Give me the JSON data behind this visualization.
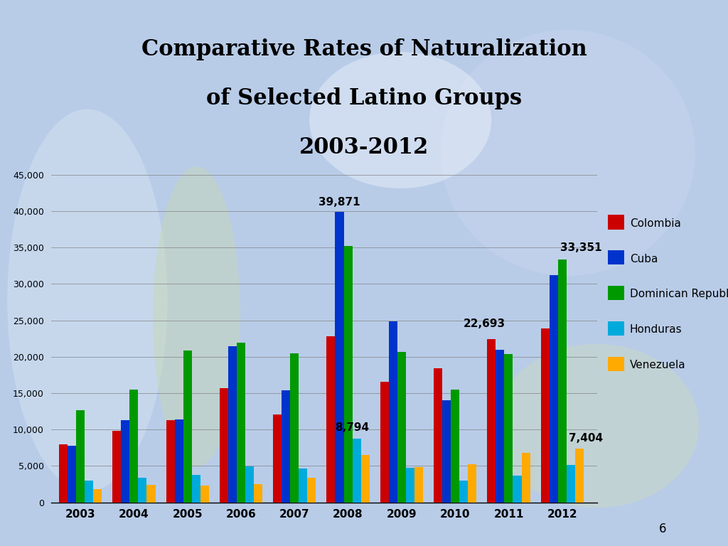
{
  "title_line1": "Comparative Rates of Naturalization",
  "title_line2": "of Selected Latino Groups",
  "title_line3": "2003-2012",
  "years": [
    2003,
    2004,
    2005,
    2006,
    2007,
    2008,
    2009,
    2010,
    2011,
    2012
  ],
  "series": {
    "Colombia": {
      "color": "#CC0000",
      "values": [
        8000,
        9800,
        11300,
        15700,
        12100,
        22800,
        16600,
        18400,
        22400,
        23900
      ]
    },
    "Cuba": {
      "color": "#0033CC",
      "values": [
        7800,
        11300,
        11400,
        21400,
        15400,
        39871,
        24900,
        14000,
        21000,
        31200
      ]
    },
    "Dominican Republic": {
      "color": "#009900",
      "values": [
        12700,
        15500,
        20900,
        21900,
        20500,
        35200,
        20700,
        15500,
        20400,
        33351
      ]
    },
    "Honduras": {
      "color": "#00AADD",
      "values": [
        3000,
        3400,
        3800,
        4900,
        4600,
        8794,
        4700,
        3000,
        3700,
        5100
      ]
    },
    "Venezuela": {
      "color": "#FFAA00",
      "values": [
        1800,
        2400,
        2300,
        2500,
        3400,
        6500,
        4800,
        5200,
        6800,
        7404
      ]
    }
  },
  "ylim": [
    0,
    45000
  ],
  "yticks": [
    0,
    5000,
    10000,
    15000,
    20000,
    25000,
    30000,
    35000,
    40000,
    45000
  ],
  "bg_top_color": "#b8cce8",
  "bg_bottom_color": "#a8c0e0",
  "page_num": "6",
  "bar_width": 0.16
}
